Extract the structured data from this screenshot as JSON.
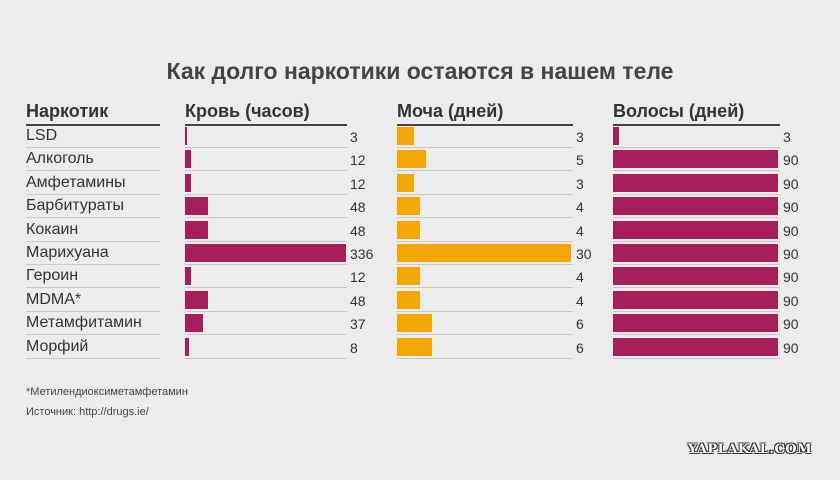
{
  "title": "Как долго наркотики остаются в нашем теле",
  "headers": {
    "drug": "Наркотик",
    "blood": "Кровь (часов)",
    "urine": "Моча (дней)",
    "hair": "Волосы (дней)"
  },
  "colors": {
    "blood": "#a61e5a",
    "urine": "#f4a700",
    "hair": "#a61e5a"
  },
  "chart_data": {
    "type": "bar",
    "title": "Как долго наркотики остаются в нашем теле",
    "categories": [
      "LSD",
      "Алкоголь",
      "Амфетамины",
      "Барбитураты",
      "Кокаин",
      "Марихуана",
      "Героин",
      "MDMA*",
      "Метамфитамин",
      "Морфий"
    ],
    "series": [
      {
        "name": "Кровь (часов)",
        "values": [
          3,
          12,
          12,
          48,
          48,
          336,
          12,
          48,
          37,
          8
        ],
        "max": 336
      },
      {
        "name": "Моча (дней)",
        "values": [
          3,
          5,
          3,
          4,
          4,
          30,
          4,
          4,
          6,
          6
        ],
        "max": 30
      },
      {
        "name": "Волосы (дней)",
        "values": [
          3,
          90,
          90,
          90,
          90,
          90,
          90,
          90,
          90,
          90
        ],
        "max": 90
      }
    ]
  },
  "footnote": "*Метилендиоксиметамфетамин",
  "source": "Источник: http://drugs.ie/",
  "watermark": "YAPLAKAL.COM"
}
